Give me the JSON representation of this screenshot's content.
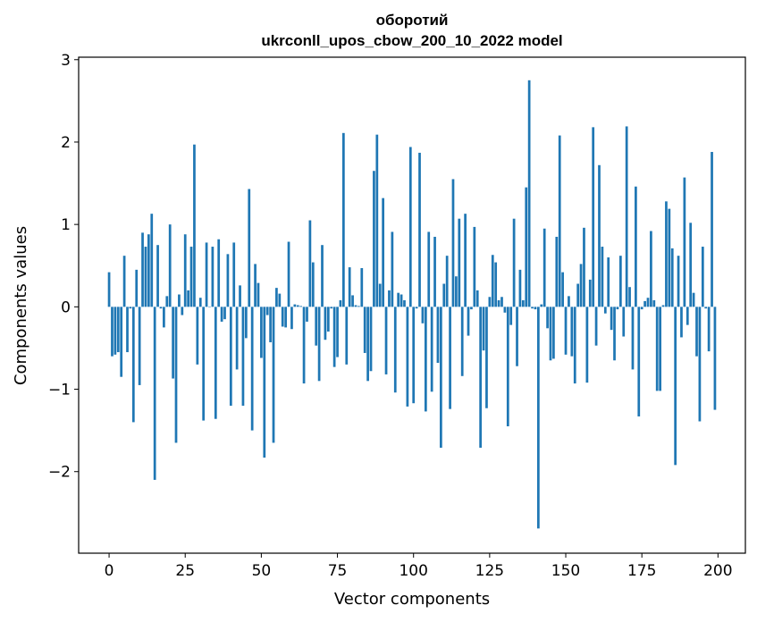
{
  "chart_data": {
    "type": "bar",
    "title": [
      "оборотий",
      "ukrconll_upos_cbow_200_10_2022 model"
    ],
    "xlabel": "Vector components",
    "ylabel": "Components values",
    "xlim": [
      -10,
      209
    ],
    "ylim": [
      -2.99,
      3.03
    ],
    "xticks": [
      0,
      25,
      50,
      75,
      100,
      125,
      150,
      175,
      200
    ],
    "xtick_labels": [
      "0",
      "25",
      "50",
      "75",
      "100",
      "125",
      "150",
      "175",
      "200"
    ],
    "yticks": [
      -2,
      -1,
      0,
      1,
      2,
      3
    ],
    "ytick_labels": [
      "−2",
      "−1",
      "0",
      "1",
      "2",
      "3"
    ],
    "bar_color": "#1f77b4",
    "grid": false,
    "x": [
      0,
      1,
      2,
      3,
      4,
      5,
      6,
      7,
      8,
      9,
      10,
      11,
      12,
      13,
      14,
      15,
      16,
      17,
      18,
      19,
      20,
      21,
      22,
      23,
      24,
      25,
      26,
      27,
      28,
      29,
      30,
      31,
      32,
      33,
      34,
      35,
      36,
      37,
      38,
      39,
      40,
      41,
      42,
      43,
      44,
      45,
      46,
      47,
      48,
      49,
      50,
      51,
      52,
      53,
      54,
      55,
      56,
      57,
      58,
      59,
      60,
      61,
      62,
      63,
      64,
      65,
      66,
      67,
      68,
      69,
      70,
      71,
      72,
      73,
      74,
      75,
      76,
      77,
      78,
      79,
      80,
      81,
      82,
      83,
      84,
      85,
      86,
      87,
      88,
      89,
      90,
      91,
      92,
      93,
      94,
      95,
      96,
      97,
      98,
      99,
      100,
      101,
      102,
      103,
      104,
      105,
      106,
      107,
      108,
      109,
      110,
      111,
      112,
      113,
      114,
      115,
      116,
      117,
      118,
      119,
      120,
      121,
      122,
      123,
      124,
      125,
      126,
      127,
      128,
      129,
      130,
      131,
      132,
      133,
      134,
      135,
      136,
      137,
      138,
      139,
      140,
      141,
      142,
      143,
      144,
      145,
      146,
      147,
      148,
      149,
      150,
      151,
      152,
      153,
      154,
      155,
      156,
      157,
      158,
      159,
      160,
      161,
      162,
      163,
      164,
      165,
      166,
      167,
      168,
      169,
      170,
      171,
      172,
      173,
      174,
      175,
      176,
      177,
      178,
      179,
      180,
      181,
      182,
      183,
      184,
      185,
      186,
      187,
      188,
      189,
      190,
      191,
      192,
      193,
      194,
      195,
      196,
      197,
      198,
      199
    ],
    "values": [
      0.42,
      -0.6,
      -0.58,
      -0.55,
      -0.85,
      0.62,
      -0.55,
      -0.02,
      -1.4,
      0.45,
      -0.95,
      0.9,
      0.73,
      0.88,
      1.13,
      -2.1,
      0.75,
      -0.02,
      -0.25,
      0.13,
      1.0,
      -0.87,
      -1.65,
      0.15,
      -0.1,
      0.88,
      0.2,
      0.73,
      1.97,
      -0.7,
      0.11,
      -1.38,
      0.78,
      0.0,
      0.73,
      -1.36,
      0.82,
      -0.18,
      -0.15,
      0.64,
      -1.2,
      0.78,
      -0.76,
      0.26,
      -1.2,
      -0.38,
      1.43,
      -1.5,
      0.52,
      0.29,
      -0.62,
      -1.83,
      -0.1,
      -0.43,
      -1.65,
      0.23,
      0.16,
      -0.24,
      -0.25,
      0.79,
      -0.27,
      0.03,
      0.02,
      0.01,
      -0.93,
      -0.18,
      1.05,
      0.54,
      -0.47,
      -0.9,
      0.75,
      -0.4,
      -0.3,
      -0.02,
      -0.73,
      -0.61,
      0.08,
      2.11,
      -0.7,
      0.48,
      0.14,
      0.02,
      0.01,
      0.47,
      -0.56,
      -0.9,
      -0.78,
      1.65,
      2.09,
      0.28,
      1.32,
      -0.82,
      0.2,
      0.91,
      -1.04,
      0.17,
      0.15,
      0.08,
      -1.21,
      1.94,
      -1.17,
      -0.02,
      1.87,
      -0.2,
      -1.27,
      0.91,
      -1.03,
      0.85,
      -0.68,
      -1.71,
      0.28,
      0.62,
      -1.24,
      1.55,
      0.37,
      1.07,
      -0.84,
      1.13,
      -0.35,
      -0.03,
      0.97,
      0.2,
      -1.71,
      -0.53,
      -1.23,
      0.12,
      0.63,
      0.54,
      0.08,
      0.12,
      -0.07,
      -1.45,
      -0.22,
      1.07,
      -0.72,
      0.45,
      0.08,
      1.45,
      2.75,
      -0.02,
      -0.03,
      -2.69,
      0.03,
      0.95,
      -0.26,
      -0.65,
      -0.63,
      0.85,
      2.08,
      0.42,
      -0.58,
      0.13,
      -0.6,
      -0.93,
      0.28,
      0.52,
      0.96,
      -0.92,
      0.33,
      2.18,
      -0.47,
      1.72,
      0.73,
      -0.08,
      0.6,
      -0.28,
      -0.65,
      -0.03,
      0.62,
      -0.36,
      2.19,
      0.24,
      -0.76,
      1.46,
      -1.33,
      -0.03,
      0.07,
      0.11,
      0.92,
      0.08,
      -1.02,
      -1.02,
      0.02,
      1.28,
      1.19,
      0.71,
      -1.92,
      0.62,
      -0.37,
      1.57,
      -0.22,
      1.02,
      0.17,
      -0.6,
      -1.39,
      0.73,
      -0.02,
      -0.54,
      1.88,
      -1.25
    ]
  }
}
